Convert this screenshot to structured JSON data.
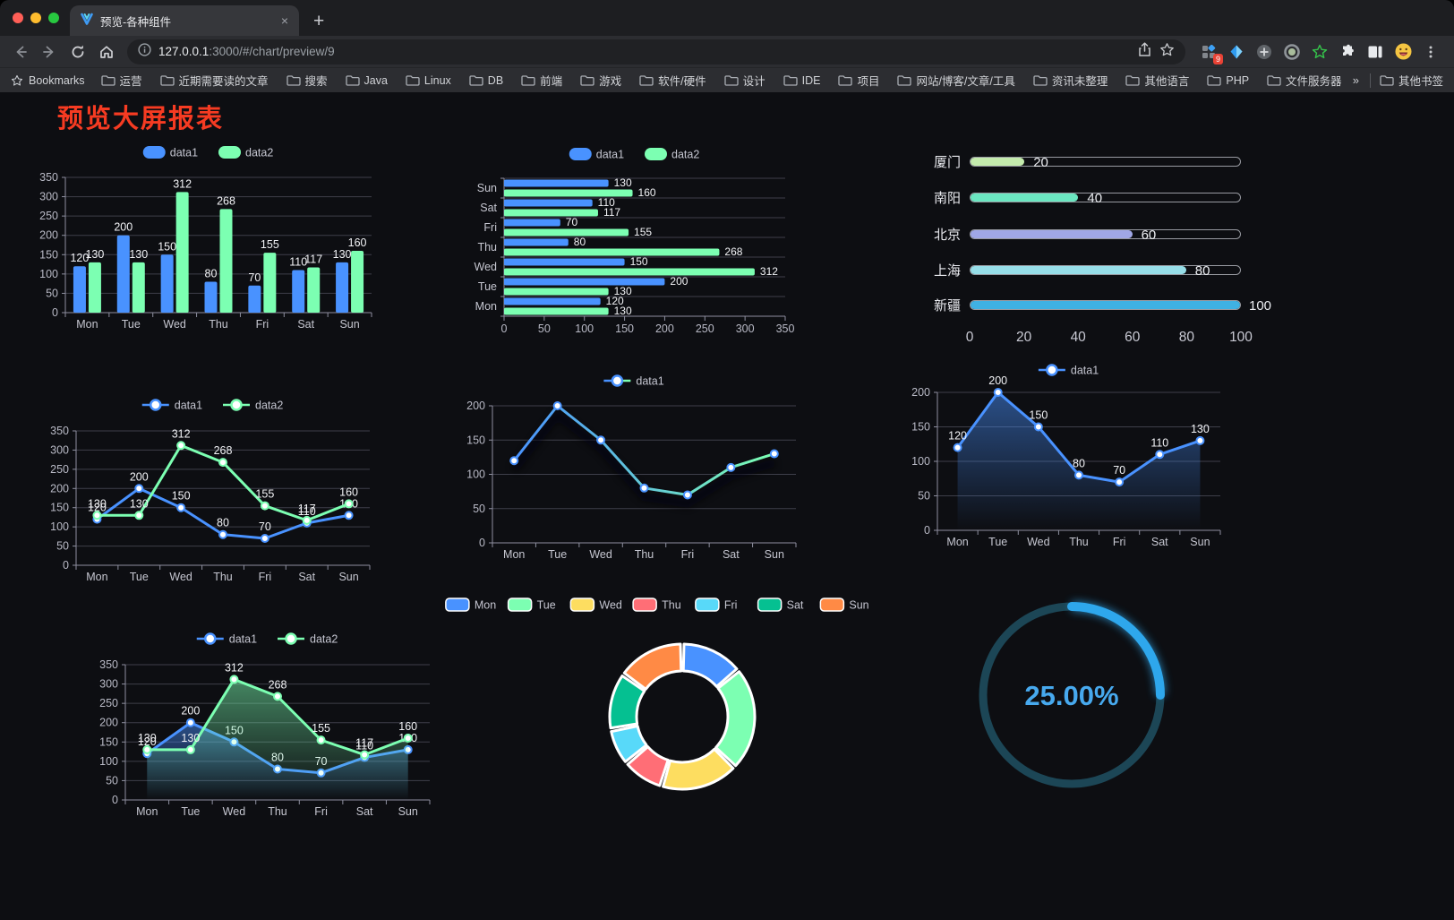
{
  "browser": {
    "traffic_lights": {
      "close": "#ff5f57",
      "minimize": "#febc2e",
      "zoom": "#28c840"
    },
    "tab": {
      "title": "预览-各种组件",
      "close_glyph": "×",
      "new_tab_glyph": "+"
    },
    "address": {
      "host": "127.0.0.1",
      "path": ":3000/#/chart/preview/9"
    },
    "extension_badge": "9",
    "bookmarks": {
      "label": "Bookmarks",
      "items": [
        "运营",
        "近期需要读的文章",
        "搜索",
        "Java",
        "Linux",
        "DB",
        "前端",
        "游戏",
        "软件/硬件",
        "设计",
        "IDE",
        "项目",
        "网站/博客/文章/工具",
        "资讯未整理",
        "其他语言",
        "PHP",
        "文件服务器"
      ],
      "overflow_glyph": "»",
      "other_label": "其他书签"
    }
  },
  "page": {
    "title": "预览大屏报表",
    "title_color": "#f63b22"
  },
  "chart_data": [
    {
      "id": "bar-vertical",
      "type": "bar",
      "legend_position": "top",
      "grid": true,
      "categories": [
        "Mon",
        "Tue",
        "Wed",
        "Thu",
        "Fri",
        "Sat",
        "Sun"
      ],
      "series": [
        {
          "name": "data1",
          "color": "#4992ff",
          "values": [
            120,
            200,
            150,
            80,
            70,
            110,
            130
          ]
        },
        {
          "name": "data2",
          "color": "#7cffb2",
          "values": [
            130,
            130,
            312,
            268,
            155,
            117,
            160
          ]
        }
      ],
      "ylim": [
        0,
        350
      ],
      "ystep": 50,
      "labels": true
    },
    {
      "id": "bar-horizontal",
      "type": "hbar",
      "legend_position": "top",
      "grid": true,
      "categories": [
        "Mon",
        "Tue",
        "Wed",
        "Thu",
        "Fri",
        "Sat",
        "Sun"
      ],
      "category_order": "bottom-up",
      "series": [
        {
          "name": "data1",
          "color": "#4992ff",
          "values": [
            120,
            200,
            150,
            80,
            70,
            110,
            130
          ]
        },
        {
          "name": "data2",
          "color": "#7cffb2",
          "values": [
            130,
            130,
            312,
            268,
            155,
            117,
            160
          ]
        }
      ],
      "xlim": [
        0,
        350
      ],
      "xstep": 50,
      "labels": true
    },
    {
      "id": "progress-list",
      "type": "progress",
      "max": 100,
      "xticks": [
        0,
        20,
        40,
        60,
        80,
        100
      ],
      "items": [
        {
          "label": "厦门",
          "value": 20,
          "color": "#c4ebad"
        },
        {
          "label": "南阳",
          "value": 40,
          "color": "#6be6c1"
        },
        {
          "label": "北京",
          "value": 60,
          "color": "#a0a7e6"
        },
        {
          "label": "上海",
          "value": 80,
          "color": "#96dee8"
        },
        {
          "label": "新疆",
          "value": 100,
          "color": "#3fb1e3"
        }
      ]
    },
    {
      "id": "line-two",
      "type": "line",
      "legend_position": "top",
      "grid": true,
      "categories": [
        "Mon",
        "Tue",
        "Wed",
        "Thu",
        "Fri",
        "Sat",
        "Sun"
      ],
      "series": [
        {
          "name": "data1",
          "color": "#4992ff",
          "values": [
            120,
            200,
            150,
            80,
            70,
            110,
            130
          ]
        },
        {
          "name": "data2",
          "color": "#7cffb2",
          "values": [
            130,
            130,
            312,
            268,
            155,
            117,
            160
          ]
        }
      ],
      "ylim": [
        0,
        350
      ],
      "ystep": 50,
      "labels": true
    },
    {
      "id": "line-gradient",
      "type": "line",
      "variant": "gradient",
      "shadow": true,
      "legend_position": "top",
      "grid": true,
      "gradient": [
        "#4992ff",
        "#7cffb2"
      ],
      "categories": [
        "Mon",
        "Tue",
        "Wed",
        "Thu",
        "Fri",
        "Sat",
        "Sun"
      ],
      "series": [
        {
          "name": "data1",
          "color": "#4992ff",
          "values": [
            120,
            200,
            150,
            80,
            70,
            110,
            130
          ]
        }
      ],
      "ylim": [
        0,
        200
      ],
      "ystep": 50,
      "labels": false
    },
    {
      "id": "area-one",
      "type": "line",
      "variant": "area",
      "legend_position": "top",
      "grid": true,
      "categories": [
        "Mon",
        "Tue",
        "Wed",
        "Thu",
        "Fri",
        "Sat",
        "Sun"
      ],
      "series": [
        {
          "name": "data1",
          "color": "#4992ff",
          "values": [
            120,
            200,
            150,
            80,
            70,
            110,
            130
          ]
        }
      ],
      "ylim": [
        0,
        200
      ],
      "ystep": 50,
      "labels": true
    },
    {
      "id": "area-two",
      "type": "line",
      "variant": "area",
      "legend_position": "top",
      "grid": true,
      "categories": [
        "Mon",
        "Tue",
        "Wed",
        "Thu",
        "Fri",
        "Sat",
        "Sun"
      ],
      "series": [
        {
          "name": "data1",
          "color": "#4992ff",
          "values": [
            120,
            200,
            150,
            80,
            70,
            110,
            130
          ]
        },
        {
          "name": "data2",
          "color": "#7cffb2",
          "values": [
            130,
            130,
            312,
            268,
            155,
            117,
            160
          ]
        }
      ],
      "ylim": [
        0,
        350
      ],
      "ystep": 50,
      "labels": true
    },
    {
      "id": "donut",
      "type": "pie",
      "legend_position": "top",
      "inner_radius_ratio": 0.63,
      "items": [
        {
          "label": "Mon",
          "value": 120,
          "color": "#4992ff"
        },
        {
          "label": "Tue",
          "value": 200,
          "color": "#7cffb2"
        },
        {
          "label": "Wed",
          "value": 150,
          "color": "#fddd60"
        },
        {
          "label": "Thu",
          "value": 80,
          "color": "#ff6e76"
        },
        {
          "label": "Fri",
          "value": 70,
          "color": "#58d9f9"
        },
        {
          "label": "Sat",
          "value": 110,
          "color": "#05c091"
        },
        {
          "label": "Sun",
          "value": 130,
          "color": "#ff8a45"
        }
      ]
    },
    {
      "id": "gauge",
      "type": "gauge",
      "value": 25,
      "display": "25.00%",
      "color": "#2ea7ec",
      "track": "#1c4656",
      "text_color": "#47a9ee"
    }
  ]
}
